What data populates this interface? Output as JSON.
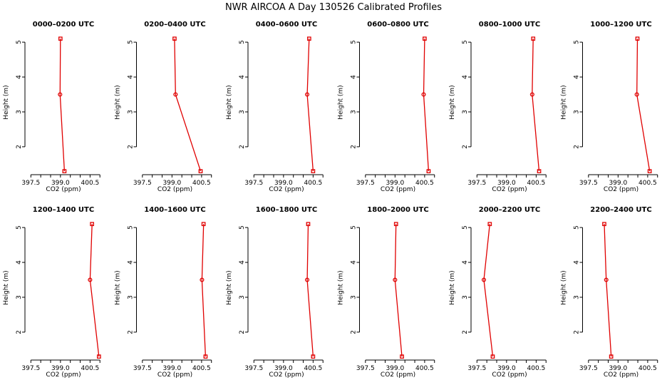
{
  "chart_data": {
    "title": "NWR AIRCOA A  Day 130526  Calibrated Profiles",
    "type": "line",
    "xlabel": "CO2 (ppm)",
    "ylabel": "Height (m)",
    "xlim": [
      397.2,
      401.1
    ],
    "ylim": [
      1.2,
      5.35
    ],
    "xticks": [
      397.5,
      398.0,
      398.5,
      399.0,
      399.5,
      400.0,
      400.5,
      401.0
    ],
    "xtick_labels": [
      "397.5",
      "",
      "",
      "399.0",
      "",
      "",
      "400.5",
      ""
    ],
    "yticks": [
      2,
      3,
      4,
      5
    ],
    "ytick_labels": [
      "2",
      "3",
      "4",
      "5"
    ],
    "heights": [
      1.3,
      3.5,
      5.1
    ],
    "markers": [
      "square",
      "circle",
      "square"
    ],
    "panels": [
      {
        "title": "0000–0200 UTC",
        "values": [
          399.2,
          398.98,
          399.0
        ]
      },
      {
        "title": "0200–0400 UTC",
        "values": [
          400.45,
          399.18,
          399.13
        ]
      },
      {
        "title": "0400–0600 UTC",
        "values": [
          400.5,
          400.2,
          400.3
        ]
      },
      {
        "title": "0600–0800 UTC",
        "values": [
          400.7,
          400.45,
          400.5
        ]
      },
      {
        "title": "0800–1000 UTC",
        "values": [
          400.65,
          400.3,
          400.35
        ]
      },
      {
        "title": "1000–1200 UTC",
        "values": [
          400.6,
          399.95,
          399.98
        ]
      },
      {
        "title": "1200–1400 UTC",
        "values": [
          400.95,
          400.5,
          400.6
        ]
      },
      {
        "title": "1400–1600 UTC",
        "values": [
          400.7,
          400.52,
          400.6
        ]
      },
      {
        "title": "1600–1800 UTC",
        "values": [
          400.5,
          400.2,
          400.25
        ]
      },
      {
        "title": "1800–2000 UTC",
        "values": [
          399.35,
          399.0,
          399.05
        ]
      },
      {
        "title": "2000–2200 UTC",
        "values": [
          398.3,
          397.85,
          398.15
        ]
      },
      {
        "title": "2200–2400 UTC",
        "values": [
          398.65,
          398.4,
          398.3
        ]
      }
    ]
  }
}
